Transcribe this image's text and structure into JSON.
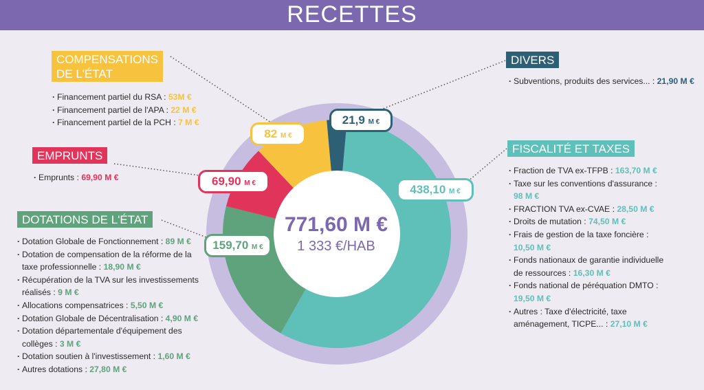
{
  "title": "RECETTES",
  "center": {
    "total": "771,60 M €",
    "per_hab": "1 333 €/HAB"
  },
  "colors": {
    "banner": "#7c68ae",
    "ring": "#c7bde0",
    "fiscalite": "#5fbfb9",
    "dotations": "#5ea37c",
    "emprunts": "#e0345a",
    "compensations": "#f7c33e",
    "divers": "#2d5f75"
  },
  "chart_data": {
    "type": "pie",
    "unit": "M €",
    "total_label": "771,60 M €",
    "categories": [
      "Fiscalité et taxes",
      "Dotations de l'État",
      "Emprunts",
      "Compensations de l'État",
      "Divers"
    ],
    "values": [
      438.1,
      159.7,
      69.9,
      82,
      21.9
    ],
    "value_labels": [
      "438,10",
      "159,70",
      "69,90",
      "82",
      "21,9"
    ]
  },
  "sections": {
    "compensations": {
      "title_lines": [
        "COMPENSATIONS",
        "DE L'ÉTAT"
      ],
      "items": [
        {
          "label": "Financement partiel du RSA : ",
          "value": "53M €"
        },
        {
          "label": "Financement partiel de l'APA : ",
          "value": "22 M €"
        },
        {
          "label": "Financement partiel de la PCH : ",
          "value": "7 M €"
        }
      ]
    },
    "emprunts": {
      "title_lines": [
        "EMPRUNTS"
      ],
      "items": [
        {
          "label": "Emprunts : ",
          "value": "69,90 M €"
        }
      ]
    },
    "dotations": {
      "title_lines": [
        "DOTATIONS DE L'ÉTAT"
      ],
      "items": [
        {
          "label": "Dotation Globale de Fonctionnement : ",
          "value": "89 M €"
        },
        {
          "label": "Dotation de compensation de la réforme de la taxe professionnelle : ",
          "value": "18,90 M €"
        },
        {
          "label": "Récupération de la TVA sur les investissements réalisés : ",
          "value": "9 M €"
        },
        {
          "label": "Allocations compensatrices : ",
          "value": "5,50 M €"
        },
        {
          "label": "Dotation Globale de Décentralisation : ",
          "value": "4,90 M €"
        },
        {
          "label": "Dotation départementale d'équipement des collèges : ",
          "value": "3 M €"
        },
        {
          "label": "Dotation soutien à l'investissement : ",
          "value": "1,60 M €"
        },
        {
          "label": "Autres dotations : ",
          "value": "27,80 M €"
        }
      ]
    },
    "divers": {
      "title_lines": [
        "DIVERS"
      ],
      "items": [
        {
          "label": "Subventions, produits des services... : ",
          "value": "21,90 M €"
        }
      ]
    },
    "fiscalite": {
      "title_lines": [
        "FISCALITÉ ET TAXES"
      ],
      "items": [
        {
          "label": "Fraction de TVA ex-TFPB : ",
          "value": "163,70 M €"
        },
        {
          "label": "Taxe sur les conventions d'assurance : ",
          "value": "98 M €"
        },
        {
          "label": "FRACTION TVA ex-CVAE : ",
          "value": "28,50 M €"
        },
        {
          "label": "Droits de mutation : ",
          "value": "74,50 M €"
        },
        {
          "label": "Frais de gestion de la taxe foncière : ",
          "value": "10,50 M €"
        },
        {
          "label": "Fonds nationaux de garantie individuelle de ressources : ",
          "value": "16,30 M €"
        },
        {
          "label": "Fonds national de péréquation DMTO : ",
          "value": "19,50 M €"
        },
        {
          "label": "Autres : Taxe d'électricité, taxe aménagement, TICPE... : ",
          "value": "27,10 M €"
        }
      ]
    }
  }
}
